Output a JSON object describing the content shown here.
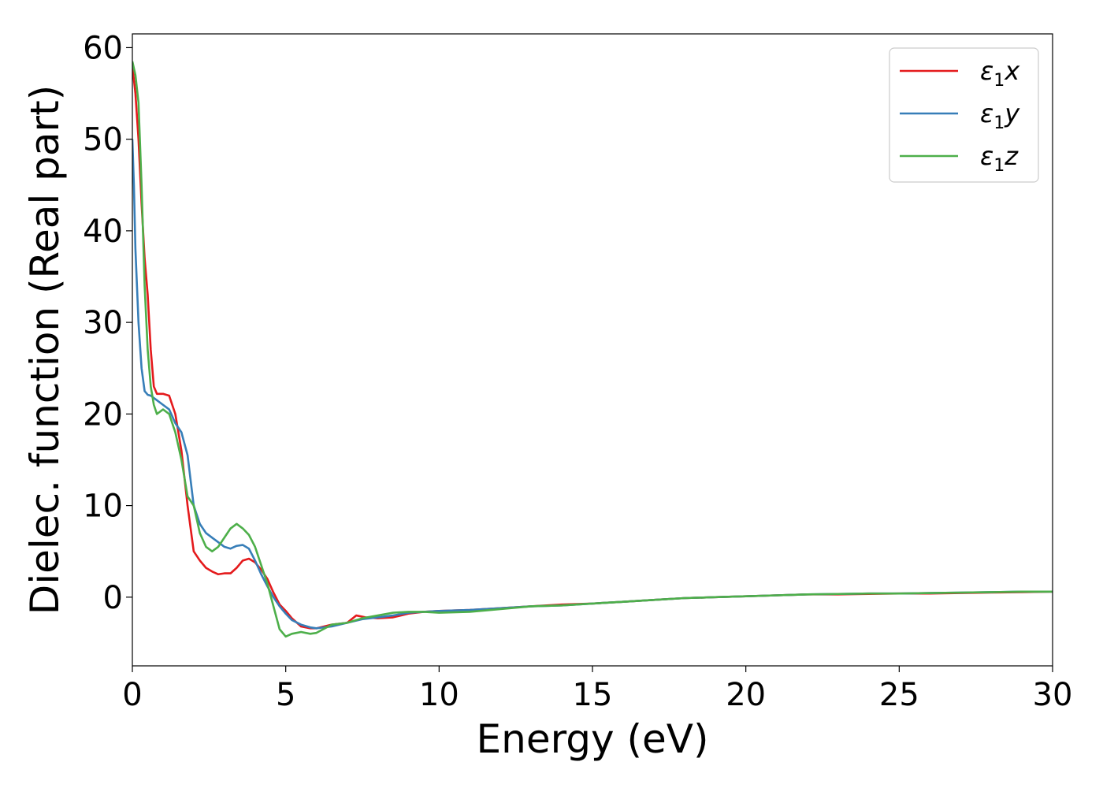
{
  "chart_data": {
    "type": "line",
    "xlabel": "Energy (eV)",
    "ylabel": "Dielec. function (Real part)",
    "xlim": [
      0,
      30
    ],
    "ylim": [
      -7.5,
      61.5
    ],
    "xticks": [
      "0",
      "5",
      "10",
      "15",
      "20",
      "25",
      "30"
    ],
    "yticks": [
      "0",
      "10",
      "20",
      "30",
      "40",
      "50",
      "60"
    ],
    "grid": false,
    "legend_position": "top-right",
    "series": [
      {
        "name": "ε1x",
        "legend": {
          "base": "ε",
          "sub": "1",
          "var": "x"
        },
        "color": "#e41a1c",
        "x": [
          0,
          0.1,
          0.2,
          0.3,
          0.4,
          0.5,
          0.6,
          0.7,
          0.8,
          0.9,
          1.0,
          1.2,
          1.4,
          1.6,
          1.8,
          2.0,
          2.2,
          2.4,
          2.6,
          2.8,
          3.0,
          3.2,
          3.4,
          3.6,
          3.8,
          4.0,
          4.2,
          4.4,
          4.6,
          4.8,
          5.0,
          5.2,
          5.5,
          5.8,
          6.0,
          6.5,
          7.0,
          7.3,
          7.6,
          8.0,
          8.5,
          9.0,
          9.5,
          10,
          11,
          12,
          13,
          14,
          15,
          16,
          17,
          18,
          19,
          20,
          21,
          22,
          23,
          24,
          25,
          26,
          27,
          28,
          29,
          30
        ],
        "y": [
          58,
          55,
          50,
          43,
          37,
          33,
          27,
          23,
          22.2,
          22.2,
          22.2,
          22,
          20,
          16,
          10,
          5,
          4,
          3.2,
          2.8,
          2.5,
          2.6,
          2.6,
          3.2,
          4.0,
          4.2,
          3.8,
          3.0,
          2.0,
          0.5,
          -0.8,
          -1.5,
          -2.3,
          -3.2,
          -3.4,
          -3.4,
          -3.0,
          -2.8,
          -2.0,
          -2.2,
          -2.3,
          -2.2,
          -1.8,
          -1.6,
          -1.5,
          -1.4,
          -1.2,
          -1.0,
          -0.8,
          -0.7,
          -0.5,
          -0.3,
          -0.1,
          0.0,
          0.1,
          0.2,
          0.3,
          0.3,
          0.35,
          0.4,
          0.4,
          0.45,
          0.5,
          0.55,
          0.6
        ]
      },
      {
        "name": "ε1y",
        "legend": {
          "base": "ε",
          "sub": "1",
          "var": "y"
        },
        "color": "#377eb8",
        "x": [
          0,
          0.05,
          0.1,
          0.2,
          0.3,
          0.4,
          0.5,
          0.6,
          0.8,
          1.0,
          1.2,
          1.4,
          1.6,
          1.8,
          2.0,
          2.2,
          2.4,
          2.6,
          2.8,
          3.0,
          3.2,
          3.4,
          3.6,
          3.8,
          4.0,
          4.2,
          4.4,
          4.6,
          4.8,
          5.0,
          5.2,
          5.5,
          5.8,
          6.0,
          6.5,
          7.0,
          7.5,
          8.0,
          8.5,
          9.0,
          9.5,
          10,
          11,
          12,
          13,
          14,
          15,
          16,
          17,
          18,
          19,
          20,
          21,
          22,
          23,
          24,
          25,
          26,
          27,
          28,
          29,
          30
        ],
        "y": [
          50,
          45,
          38,
          30,
          25,
          22.5,
          22.1,
          22,
          21.5,
          21,
          20.5,
          19,
          18,
          15.5,
          10,
          8,
          7,
          6.5,
          6.0,
          5.5,
          5.3,
          5.6,
          5.7,
          5.3,
          4.0,
          2.5,
          1.2,
          0.0,
          -1.0,
          -1.8,
          -2.5,
          -3.0,
          -3.3,
          -3.4,
          -3.2,
          -2.8,
          -2.4,
          -2.2,
          -2.0,
          -1.7,
          -1.6,
          -1.5,
          -1.4,
          -1.2,
          -1.0,
          -0.9,
          -0.7,
          -0.5,
          -0.3,
          -0.1,
          0.0,
          0.1,
          0.2,
          0.3,
          0.35,
          0.4,
          0.4,
          0.45,
          0.5,
          0.55,
          0.6,
          0.6
        ]
      },
      {
        "name": "ε1z",
        "legend": {
          "base": "ε",
          "sub": "1",
          "var": "z"
        },
        "color": "#4daf4a",
        "x": [
          0,
          0.1,
          0.2,
          0.3,
          0.4,
          0.5,
          0.6,
          0.7,
          0.8,
          1.0,
          1.2,
          1.4,
          1.6,
          1.8,
          2.0,
          2.2,
          2.4,
          2.6,
          2.8,
          3.0,
          3.2,
          3.4,
          3.6,
          3.8,
          4.0,
          4.2,
          4.4,
          4.6,
          4.8,
          5.0,
          5.2,
          5.5,
          5.8,
          6.0,
          6.5,
          7.0,
          7.5,
          8.0,
          8.5,
          9.0,
          9.5,
          10,
          11,
          12,
          13,
          14,
          15,
          16,
          17,
          18,
          19,
          20,
          21,
          22,
          23,
          24,
          25,
          26,
          27,
          28,
          29,
          30
        ],
        "y": [
          58.5,
          57,
          54,
          45,
          34,
          27,
          23,
          21,
          20,
          20.5,
          20,
          18,
          15,
          11,
          10,
          7,
          5.5,
          5.0,
          5.5,
          6.5,
          7.5,
          8.0,
          7.5,
          6.8,
          5.5,
          3.5,
          1.5,
          -1.0,
          -3.5,
          -4.3,
          -4.0,
          -3.8,
          -4.0,
          -3.9,
          -3.0,
          -2.8,
          -2.3,
          -2.0,
          -1.7,
          -1.6,
          -1.6,
          -1.7,
          -1.6,
          -1.3,
          -1.0,
          -0.9,
          -0.7,
          -0.5,
          -0.3,
          -0.1,
          0.0,
          0.1,
          0.2,
          0.3,
          0.35,
          0.4,
          0.4,
          0.45,
          0.5,
          0.55,
          0.6,
          0.6
        ]
      }
    ]
  }
}
